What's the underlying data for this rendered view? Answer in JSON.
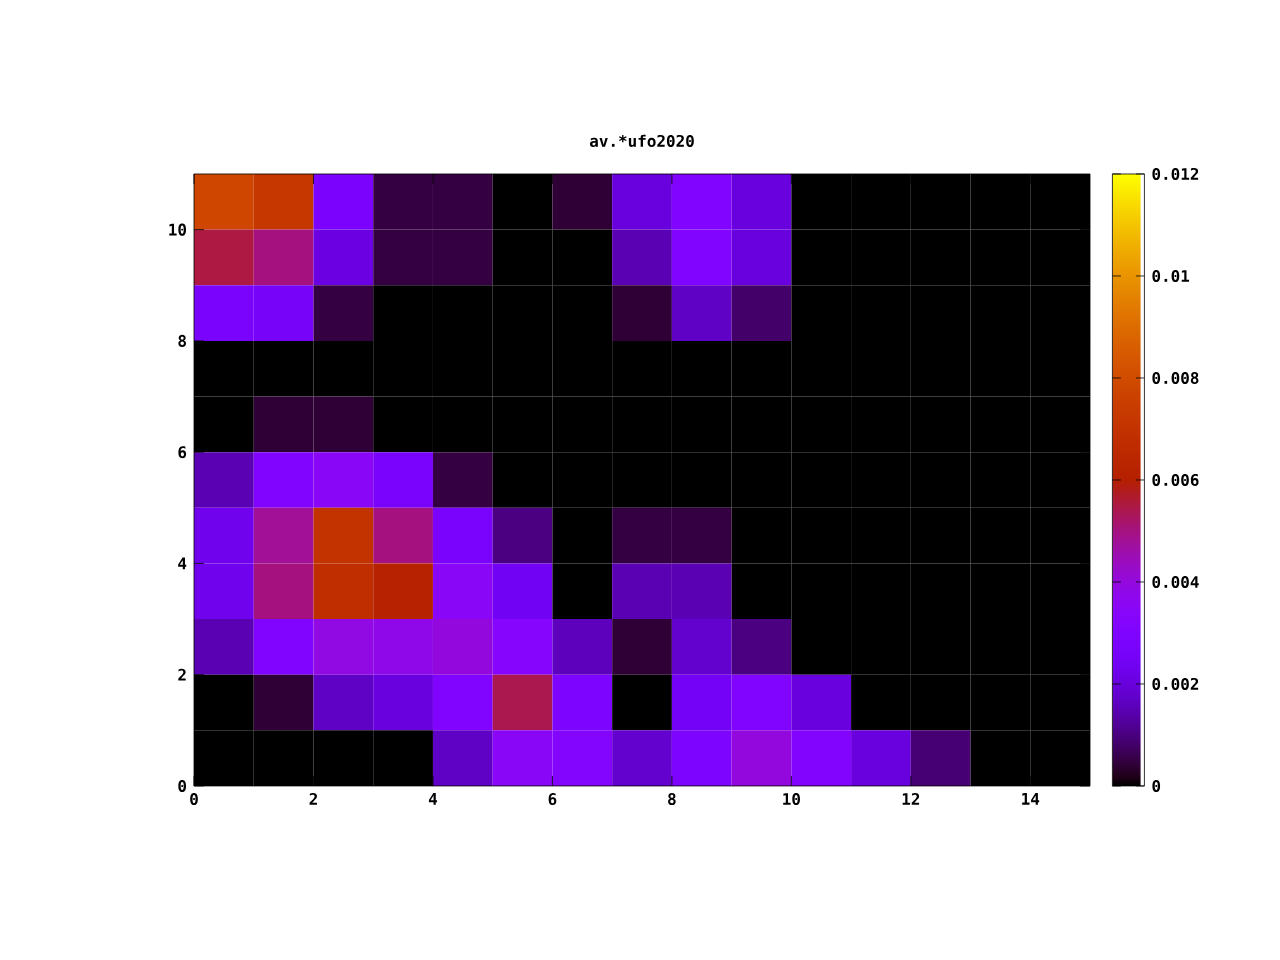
{
  "chart_data": {
    "type": "heatmap",
    "title": "av.*ufo2020",
    "xlim": [
      0,
      15
    ],
    "xticks": [
      0,
      2,
      4,
      6,
      8,
      10,
      12,
      14
    ],
    "ylim": [
      0,
      11
    ],
    "yticks": [
      0,
      2,
      4,
      6,
      8,
      10
    ],
    "cells": [
      [
        0.0078,
        0.0072,
        0.0028,
        0.0005,
        0.0005,
        0,
        0.0004,
        0.002,
        0.003,
        0.002,
        0,
        0,
        0,
        0,
        0
      ],
      [
        0.0055,
        0.005,
        0.0021,
        0.0005,
        0.0005,
        0,
        0,
        0.0015,
        0.003,
        0.002,
        0,
        0,
        0,
        0,
        0
      ],
      [
        0.0027,
        0.0026,
        0.0005,
        0,
        0,
        0,
        0,
        0.0004,
        0.0017,
        0.0008,
        0,
        0,
        0,
        0,
        0
      ],
      [
        0,
        0,
        0,
        0,
        0,
        0,
        0,
        0,
        0,
        0,
        0,
        0,
        0,
        0,
        0
      ],
      [
        0,
        0.0004,
        0.0004,
        0,
        0,
        0,
        0,
        0,
        0,
        0,
        0,
        0,
        0,
        0,
        0
      ],
      [
        0.0015,
        0.003,
        0.0035,
        0.0027,
        0.0005,
        0,
        0,
        0,
        0,
        0,
        0,
        0,
        0,
        0,
        0
      ],
      [
        0.0023,
        0.0048,
        0.007,
        0.005,
        0.0027,
        0.001,
        0,
        0.0005,
        0.0005,
        0,
        0,
        0,
        0,
        0,
        0
      ],
      [
        0.0023,
        0.005,
        0.0068,
        0.0062,
        0.0035,
        0.0024,
        0,
        0.0015,
        0.0015,
        0,
        0,
        0,
        0,
        0,
        0
      ],
      [
        0.0015,
        0.003,
        0.0039,
        0.0038,
        0.004,
        0.0033,
        0.0016,
        0.0004,
        0.0018,
        0.001,
        0,
        0,
        0,
        0,
        0
      ],
      [
        0,
        0.0004,
        0.0017,
        0.002,
        0.003,
        0.0054,
        0.0029,
        0,
        0.0025,
        0.003,
        0.002,
        0,
        0,
        0,
        0
      ],
      [
        0,
        0,
        0,
        0,
        0.0017,
        0.0035,
        0.0032,
        0.0018,
        0.0029,
        0.004,
        0.0031,
        0.002,
        0.0009,
        0,
        0
      ]
    ],
    "clim": [
      0,
      0.012
    ],
    "cticks": [
      0,
      0.002,
      0.004,
      0.006,
      0.008,
      0.01,
      0.012
    ]
  }
}
